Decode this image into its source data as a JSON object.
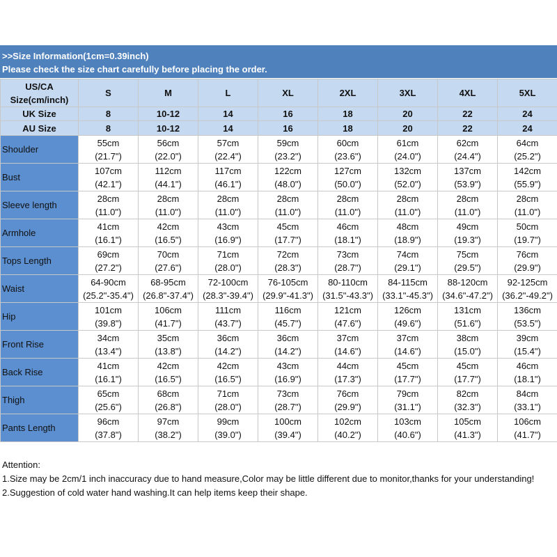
{
  "header": {
    "line1": ">>Size Information(1cm=0.39inch)",
    "line2": "Please check the size chart carefully before placing the order."
  },
  "table": {
    "size_header": {
      "label_lines": [
        "US/CA",
        "Size(cm/inch)"
      ],
      "sizes": [
        "S",
        "M",
        "L",
        "XL",
        "2XL",
        "3XL",
        "4XL",
        "5XL"
      ]
    },
    "uk": {
      "label": "UK Size",
      "values": [
        "8",
        "10-12",
        "14",
        "16",
        "18",
        "20",
        "22",
        "24"
      ]
    },
    "au": {
      "label": "AU Size",
      "values": [
        "8",
        "10-12",
        "14",
        "16",
        "18",
        "20",
        "22",
        "24"
      ]
    },
    "rows": [
      {
        "label": "Shoulder",
        "cells": [
          [
            "55cm",
            "(21.7\")"
          ],
          [
            "56cm",
            "(22.0\")"
          ],
          [
            "57cm",
            "(22.4\")"
          ],
          [
            "59cm",
            "(23.2\")"
          ],
          [
            "60cm",
            "(23.6\")"
          ],
          [
            "61cm",
            "(24.0\")"
          ],
          [
            "62cm",
            "(24.4\")"
          ],
          [
            "64cm",
            "(25.2\")"
          ]
        ]
      },
      {
        "label": "Bust",
        "cells": [
          [
            "107cm",
            "(42.1\")"
          ],
          [
            "112cm",
            "(44.1\")"
          ],
          [
            "117cm",
            "(46.1\")"
          ],
          [
            "122cm",
            "(48.0\")"
          ],
          [
            "127cm",
            "(50.0\")"
          ],
          [
            "132cm",
            "(52.0\")"
          ],
          [
            "137cm",
            "(53.9\")"
          ],
          [
            "142cm",
            "(55.9\")"
          ]
        ]
      },
      {
        "label": "Sleeve length",
        "cells": [
          [
            "28cm",
            "(11.0\")"
          ],
          [
            "28cm",
            "(11.0\")"
          ],
          [
            "28cm",
            "(11.0\")"
          ],
          [
            "28cm",
            "(11.0\")"
          ],
          [
            "28cm",
            "(11.0\")"
          ],
          [
            "28cm",
            "(11.0\")"
          ],
          [
            "28cm",
            "(11.0\")"
          ],
          [
            "28cm",
            "(11.0\")"
          ]
        ]
      },
      {
        "label": "Armhole",
        "cells": [
          [
            "41cm",
            "(16.1\")"
          ],
          [
            "42cm",
            "(16.5\")"
          ],
          [
            "43cm",
            "(16.9\")"
          ],
          [
            "45cm",
            "(17.7\")"
          ],
          [
            "46cm",
            "(18.1\")"
          ],
          [
            "48cm",
            "(18.9\")"
          ],
          [
            "49cm",
            "(19.3\")"
          ],
          [
            "50cm",
            "(19.7\")"
          ]
        ]
      },
      {
        "label": "Tops Length",
        "cells": [
          [
            "69cm",
            "(27.2\")"
          ],
          [
            "70cm",
            "(27.6\")"
          ],
          [
            "71cm",
            "(28.0\")"
          ],
          [
            "72cm",
            "(28.3\")"
          ],
          [
            "73cm",
            "(28.7\")"
          ],
          [
            "74cm",
            "(29.1\")"
          ],
          [
            "75cm",
            "(29.5\")"
          ],
          [
            "76cm",
            "(29.9\")"
          ]
        ]
      },
      {
        "label": "Waist",
        "cells": [
          [
            "64-90cm",
            "(25.2\"-35.4\")"
          ],
          [
            "68-95cm",
            "(26.8\"-37.4\")"
          ],
          [
            "72-100cm",
            "(28.3\"-39.4\")"
          ],
          [
            "76-105cm",
            "(29.9\"-41.3\")"
          ],
          [
            "80-110cm",
            "(31.5\"-43.3\")"
          ],
          [
            "84-115cm",
            "(33.1\"-45.3\")"
          ],
          [
            "88-120cm",
            "(34.6\"-47.2\")"
          ],
          [
            "92-125cm",
            "(36.2\"-49.2\")"
          ]
        ]
      },
      {
        "label": "Hip",
        "cells": [
          [
            "101cm",
            "(39.8\")"
          ],
          [
            "106cm",
            "(41.7\")"
          ],
          [
            "111cm",
            "(43.7\")"
          ],
          [
            "116cm",
            "(45.7\")"
          ],
          [
            "121cm",
            "(47.6\")"
          ],
          [
            "126cm",
            "(49.6\")"
          ],
          [
            "131cm",
            "(51.6\")"
          ],
          [
            "136cm",
            "(53.5\")"
          ]
        ]
      },
      {
        "label": "Front Rise",
        "cells": [
          [
            "34cm",
            "(13.4\")"
          ],
          [
            "35cm",
            "(13.8\")"
          ],
          [
            "36cm",
            "(14.2\")"
          ],
          [
            "36cm",
            "(14.2\")"
          ],
          [
            "37cm",
            "(14.6\")"
          ],
          [
            "37cm",
            "(14.6\")"
          ],
          [
            "38cm",
            "(15.0\")"
          ],
          [
            "39cm",
            "(15.4\")"
          ]
        ]
      },
      {
        "label": "Back Rise",
        "cells": [
          [
            "41cm",
            "(16.1\")"
          ],
          [
            "42cm",
            "(16.5\")"
          ],
          [
            "42cm",
            "(16.5\")"
          ],
          [
            "43cm",
            "(16.9\")"
          ],
          [
            "44cm",
            "(17.3\")"
          ],
          [
            "45cm",
            "(17.7\")"
          ],
          [
            "45cm",
            "(17.7\")"
          ],
          [
            "46cm",
            "(18.1\")"
          ]
        ]
      },
      {
        "label": "Thigh",
        "cells": [
          [
            "65cm",
            "(25.6\")"
          ],
          [
            "68cm",
            "(26.8\")"
          ],
          [
            "71cm",
            "(28.0\")"
          ],
          [
            "73cm",
            "(28.7\")"
          ],
          [
            "76cm",
            "(29.9\")"
          ],
          [
            "79cm",
            "(31.1\")"
          ],
          [
            "82cm",
            "(32.3\")"
          ],
          [
            "84cm",
            "(33.1\")"
          ]
        ]
      },
      {
        "label": "Pants Length",
        "cells": [
          [
            "96cm",
            "(37.8\")"
          ],
          [
            "97cm",
            "(38.2\")"
          ],
          [
            "99cm",
            "(39.0\")"
          ],
          [
            "100cm",
            "(39.4\")"
          ],
          [
            "102cm",
            "(40.2\")"
          ],
          [
            "103cm",
            "(40.6\")"
          ],
          [
            "105cm",
            "(41.3\")"
          ],
          [
            "106cm",
            "(41.7\")"
          ]
        ]
      }
    ]
  },
  "notes": {
    "title": "Attention:",
    "items": [
      "1.Size may be 2cm/1 inch inaccuracy due to hand measure,Color may be little different due to monitor,thanks for your understanding!",
      "2.Suggestion of cold water hand washing.It can help items keep their shape."
    ]
  }
}
